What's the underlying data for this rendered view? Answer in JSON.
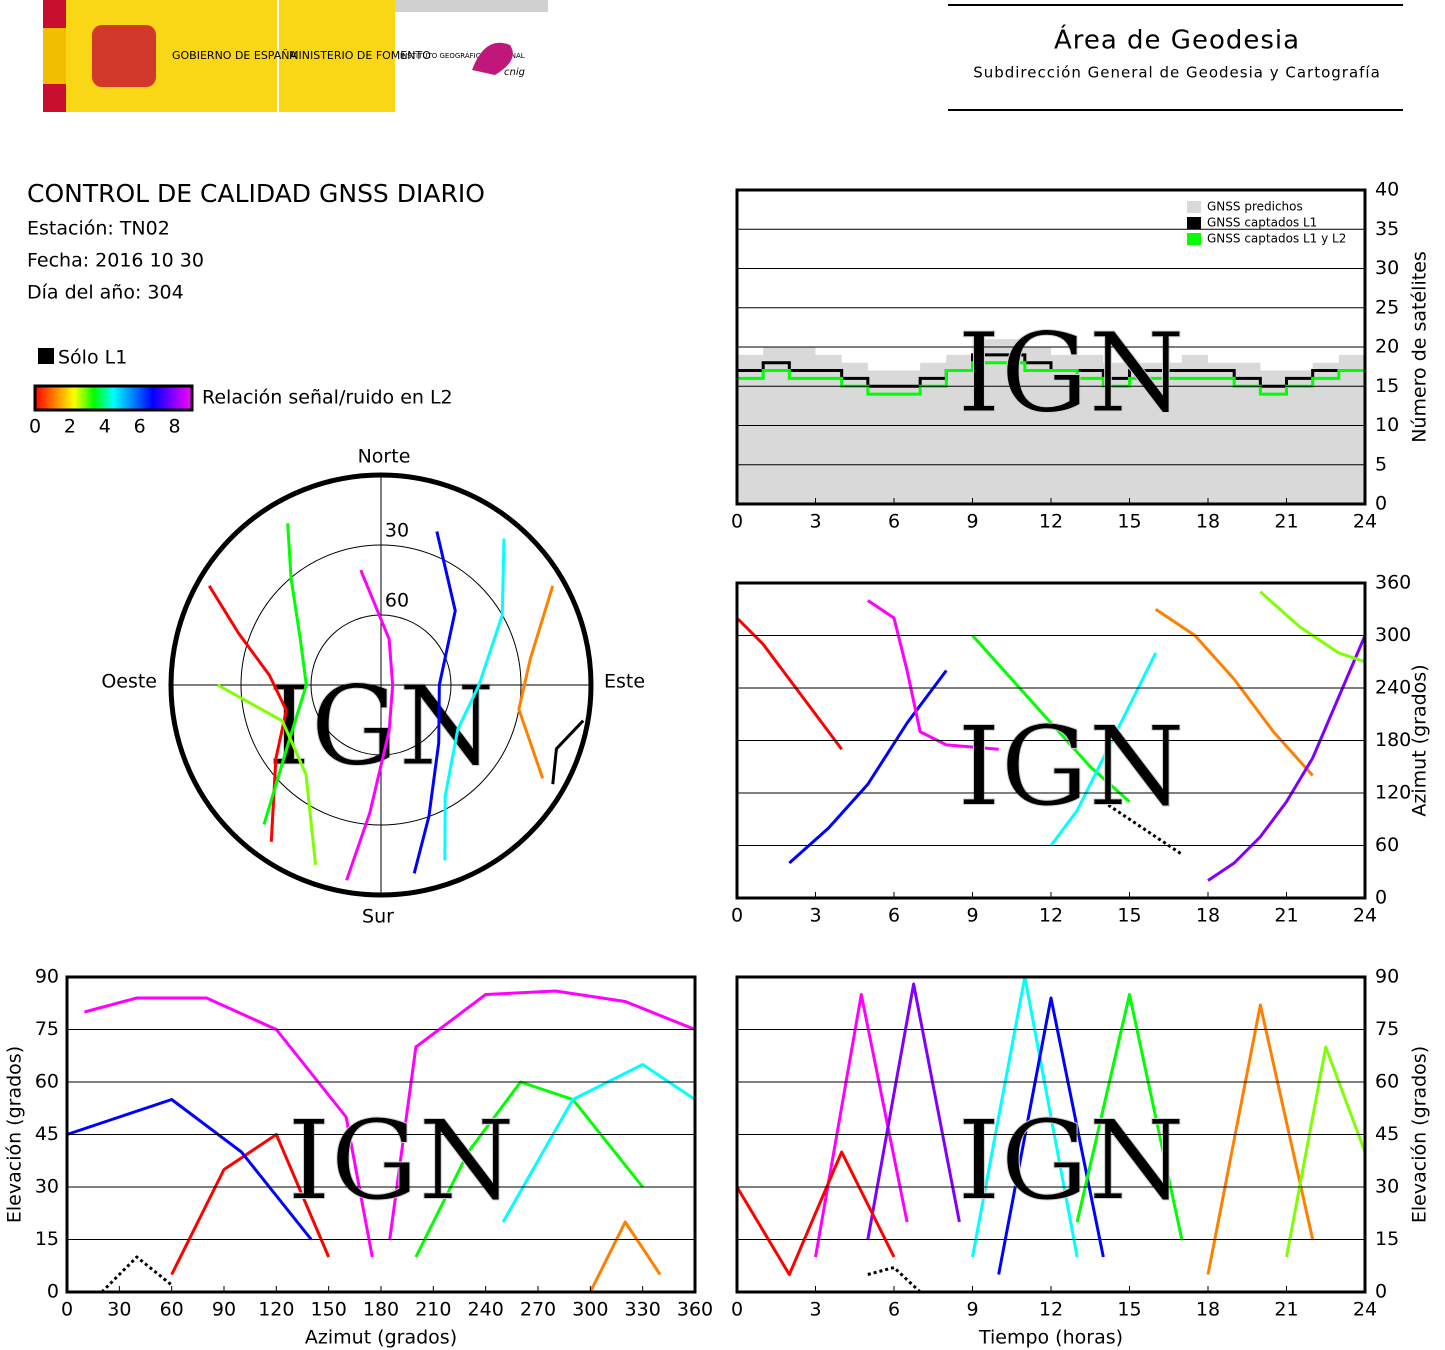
{
  "header": {
    "gov": "GOBIERNO DE ESPAÑA",
    "ministry": "MINISTERIO DE FOMENTO",
    "institute": "INSTITUTO GEOGRÁFICO NACIONAL",
    "cnig": "cnig",
    "area": "Área de Geodesia",
    "subdirection": "Subdirección General de Geodesia y Cartografía"
  },
  "report": {
    "title": "CONTROL DE CALIDAD GNSS DIARIO",
    "station": "Estación: TN02",
    "date": "Fecha: 2016 10 30",
    "doy": "Día del año: 304"
  },
  "snr_legend": {
    "solo_l1": "Sólo L1",
    "label": "Relación señal/ruido en L2",
    "ticks": [
      0,
      2,
      4,
      6,
      8
    ],
    "range": [
      0,
      9
    ],
    "colors": [
      "#ff0000",
      "#ff8000",
      "#ffff00",
      "#00ff00",
      "#00ffff",
      "#0080ff",
      "#0000ff",
      "#8000ff",
      "#ff00ff"
    ]
  },
  "watermark": "IGN",
  "chart_data": [
    {
      "type": "polar",
      "north": "Norte",
      "south": "Sur",
      "east": "Este",
      "west": "Oeste",
      "rlim": [
        0,
        90
      ],
      "rticks": [
        30,
        60
      ],
      "series": [
        {
          "color": "#ff0000",
          "x": [
            300,
            290,
            275,
            255,
            235,
            215
          ],
          "values": [
            5,
            25,
            42,
            48,
            35,
            8
          ]
        },
        {
          "color": "#00ff00",
          "x": [
            330,
            320,
            300,
            270,
            240,
            220
          ],
          "values": [
            10,
            30,
            50,
            58,
            45,
            12
          ]
        },
        {
          "color": "#00ffff",
          "x": [
            40,
            60,
            90,
            120,
            150,
            160
          ],
          "values": [
            8,
            30,
            48,
            52,
            35,
            10
          ]
        },
        {
          "color": "#0000ff",
          "x": [
            20,
            45,
            90,
            135,
            160,
            170
          ],
          "values": [
            20,
            45,
            65,
            55,
            30,
            8
          ]
        },
        {
          "color": "#ff00ff",
          "x": [
            350,
            10,
            90,
            170,
            185,
            190
          ],
          "values": [
            40,
            70,
            85,
            70,
            35,
            5
          ]
        },
        {
          "color": "#ff8000",
          "x": [
            60,
            80,
            100,
            120
          ],
          "values": [
            5,
            25,
            30,
            10
          ]
        },
        {
          "color": "#80ff00",
          "x": [
            200,
            220,
            250,
            270
          ],
          "values": [
            8,
            40,
            45,
            20
          ]
        },
        {
          "color": "#000000",
          "x": [
            100,
            110,
            120
          ],
          "values": [
            2,
            10,
            5
          ]
        }
      ]
    },
    {
      "type": "step",
      "ylabel": "Número de satélites",
      "xlim": [
        0,
        24
      ],
      "ylim": [
        0,
        40
      ],
      "xticks": [
        0,
        3,
        6,
        9,
        12,
        15,
        18,
        21,
        24
      ],
      "yticks": [
        0,
        5,
        10,
        15,
        20,
        25,
        30,
        35,
        40
      ],
      "grid": true,
      "legend": "upper right",
      "x": [
        0,
        1,
        2,
        3,
        4,
        5,
        6,
        7,
        8,
        9,
        10,
        11,
        12,
        13,
        14,
        15,
        16,
        17,
        18,
        19,
        20,
        21,
        22,
        23,
        24
      ],
      "series": [
        {
          "name": "GNSS predichos",
          "color": "#d9d9d9",
          "fill": true,
          "values": [
            19,
            20,
            20,
            19,
            18,
            17,
            17,
            18,
            19,
            21,
            21,
            20,
            19,
            19,
            18,
            18,
            18,
            19,
            18,
            18,
            17,
            17,
            18,
            19,
            19
          ]
        },
        {
          "name": "GNSS captados L1",
          "color": "#000000",
          "values": [
            17,
            18,
            17,
            17,
            16,
            15,
            15,
            16,
            17,
            19,
            19,
            18,
            17,
            17,
            16,
            17,
            17,
            17,
            17,
            16,
            15,
            16,
            17,
            17,
            17
          ]
        },
        {
          "name": "GNSS captados L1 y L2",
          "color": "#00ff00",
          "values": [
            16,
            17,
            16,
            16,
            15,
            14,
            14,
            15,
            17,
            18,
            18,
            17,
            17,
            16,
            15,
            16,
            16,
            16,
            16,
            15,
            14,
            15,
            16,
            17,
            16
          ]
        }
      ]
    },
    {
      "type": "tracks",
      "ylabel": "Azimut (grados)",
      "xlim": [
        0,
        24
      ],
      "ylim": [
        0,
        360
      ],
      "xticks": [
        0,
        3,
        6,
        9,
        12,
        15,
        18,
        21,
        24
      ],
      "yticks": [
        0,
        60,
        120,
        180,
        240,
        300,
        360
      ],
      "grid": true,
      "series": [
        {
          "color": "#ff0000",
          "x": [
            0,
            1,
            2,
            3,
            4
          ],
          "values": [
            320,
            290,
            250,
            210,
            170
          ]
        },
        {
          "color": "#0000ff",
          "x": [
            2,
            3.5,
            5,
            6.5,
            8
          ],
          "values": [
            40,
            80,
            130,
            200,
            260
          ]
        },
        {
          "color": "#ff00ff",
          "x": [
            5,
            6,
            6.5,
            7,
            8,
            10
          ],
          "values": [
            340,
            320,
            260,
            190,
            175,
            170
          ]
        },
        {
          "color": "#00ff00",
          "x": [
            9,
            10.5,
            12,
            13.5,
            15
          ],
          "values": [
            300,
            250,
            200,
            150,
            110
          ]
        },
        {
          "color": "#00ffff",
          "x": [
            12,
            13,
            14,
            15,
            16
          ],
          "values": [
            60,
            100,
            160,
            220,
            280
          ]
        },
        {
          "color": "#ff8000",
          "x": [
            16,
            17.5,
            19,
            20.5,
            22
          ],
          "values": [
            330,
            300,
            250,
            190,
            140
          ]
        },
        {
          "color": "#8000ff",
          "x": [
            18,
            19,
            20,
            21,
            22,
            23,
            24
          ],
          "values": [
            20,
            40,
            70,
            110,
            160,
            230,
            300
          ]
        },
        {
          "color": "#80ff00",
          "x": [
            20,
            21.5,
            23,
            24
          ],
          "values": [
            350,
            310,
            280,
            270
          ]
        },
        {
          "color": "#000000",
          "x": [
            14,
            15,
            16,
            17
          ],
          "values": [
            110,
            90,
            70,
            50
          ]
        }
      ]
    },
    {
      "type": "tracks",
      "xlabel": "Azimut (grados)",
      "ylabel": "Elevación (grados)",
      "yaxis": "left",
      "xlim": [
        0,
        360
      ],
      "ylim": [
        0,
        90
      ],
      "xticks": [
        0,
        30,
        60,
        90,
        120,
        150,
        180,
        210,
        240,
        270,
        300,
        330,
        360
      ],
      "yticks": [
        0,
        15,
        30,
        45,
        60,
        75,
        90
      ],
      "grid": true,
      "series": [
        {
          "color": "#ff00ff",
          "x": [
            10,
            40,
            80,
            120,
            160,
            175
          ],
          "values": [
            80,
            84,
            84,
            75,
            50,
            10
          ]
        },
        {
          "color": "#ff00ff",
          "x": [
            185,
            200,
            240,
            280,
            320,
            360
          ],
          "values": [
            15,
            70,
            85,
            86,
            83,
            75
          ]
        },
        {
          "color": "#ff0000",
          "x": [
            60,
            90,
            120,
            150
          ],
          "values": [
            5,
            35,
            45,
            10
          ]
        },
        {
          "color": "#0000ff",
          "x": [
            0,
            30,
            60,
            100,
            140
          ],
          "values": [
            45,
            50,
            55,
            40,
            15
          ]
        },
        {
          "color": "#00ff00",
          "x": [
            200,
            230,
            260,
            290,
            330
          ],
          "values": [
            10,
            40,
            60,
            55,
            30
          ]
        },
        {
          "color": "#00ffff",
          "x": [
            250,
            290,
            330,
            360
          ],
          "values": [
            20,
            55,
            65,
            55
          ]
        },
        {
          "color": "#ff8000",
          "x": [
            300,
            320,
            340
          ],
          "values": [
            0,
            20,
            5
          ]
        },
        {
          "color": "#000000",
          "x": [
            20,
            40,
            60
          ],
          "values": [
            0,
            10,
            2
          ]
        }
      ]
    },
    {
      "type": "tracks",
      "xlabel": "Tiempo (horas)",
      "ylabel": "Elevación (grados)",
      "xlim": [
        0,
        24
      ],
      "ylim": [
        0,
        90
      ],
      "xticks": [
        0,
        3,
        6,
        9,
        12,
        15,
        18,
        21,
        24
      ],
      "yticks": [
        0,
        15,
        30,
        45,
        60,
        75,
        90
      ],
      "grid": true,
      "series": [
        {
          "color": "#ff00ff",
          "x": [
            3,
            4.75,
            6.5
          ],
          "values": [
            10,
            85,
            20
          ]
        },
        {
          "color": "#8000ff",
          "x": [
            5,
            6.75,
            8.5
          ],
          "values": [
            15,
            88,
            20
          ]
        },
        {
          "color": "#00ffff",
          "x": [
            9,
            11,
            13
          ],
          "values": [
            10,
            90,
            10
          ]
        },
        {
          "color": "#0000ff",
          "x": [
            10,
            12,
            14
          ],
          "values": [
            5,
            84,
            10
          ]
        },
        {
          "color": "#ff0000",
          "x": [
            0,
            2,
            4,
            6
          ],
          "values": [
            30,
            5,
            40,
            10
          ]
        },
        {
          "color": "#00ff00",
          "x": [
            13,
            15,
            17
          ],
          "values": [
            20,
            85,
            15
          ]
        },
        {
          "color": "#ff8000",
          "x": [
            18,
            20,
            22
          ],
          "values": [
            5,
            82,
            15
          ]
        },
        {
          "color": "#80ff00",
          "x": [
            21,
            22.5,
            24
          ],
          "values": [
            10,
            70,
            40
          ]
        },
        {
          "color": "#000000",
          "x": [
            5,
            6,
            7
          ],
          "values": [
            5,
            7,
            0
          ]
        }
      ]
    }
  ]
}
